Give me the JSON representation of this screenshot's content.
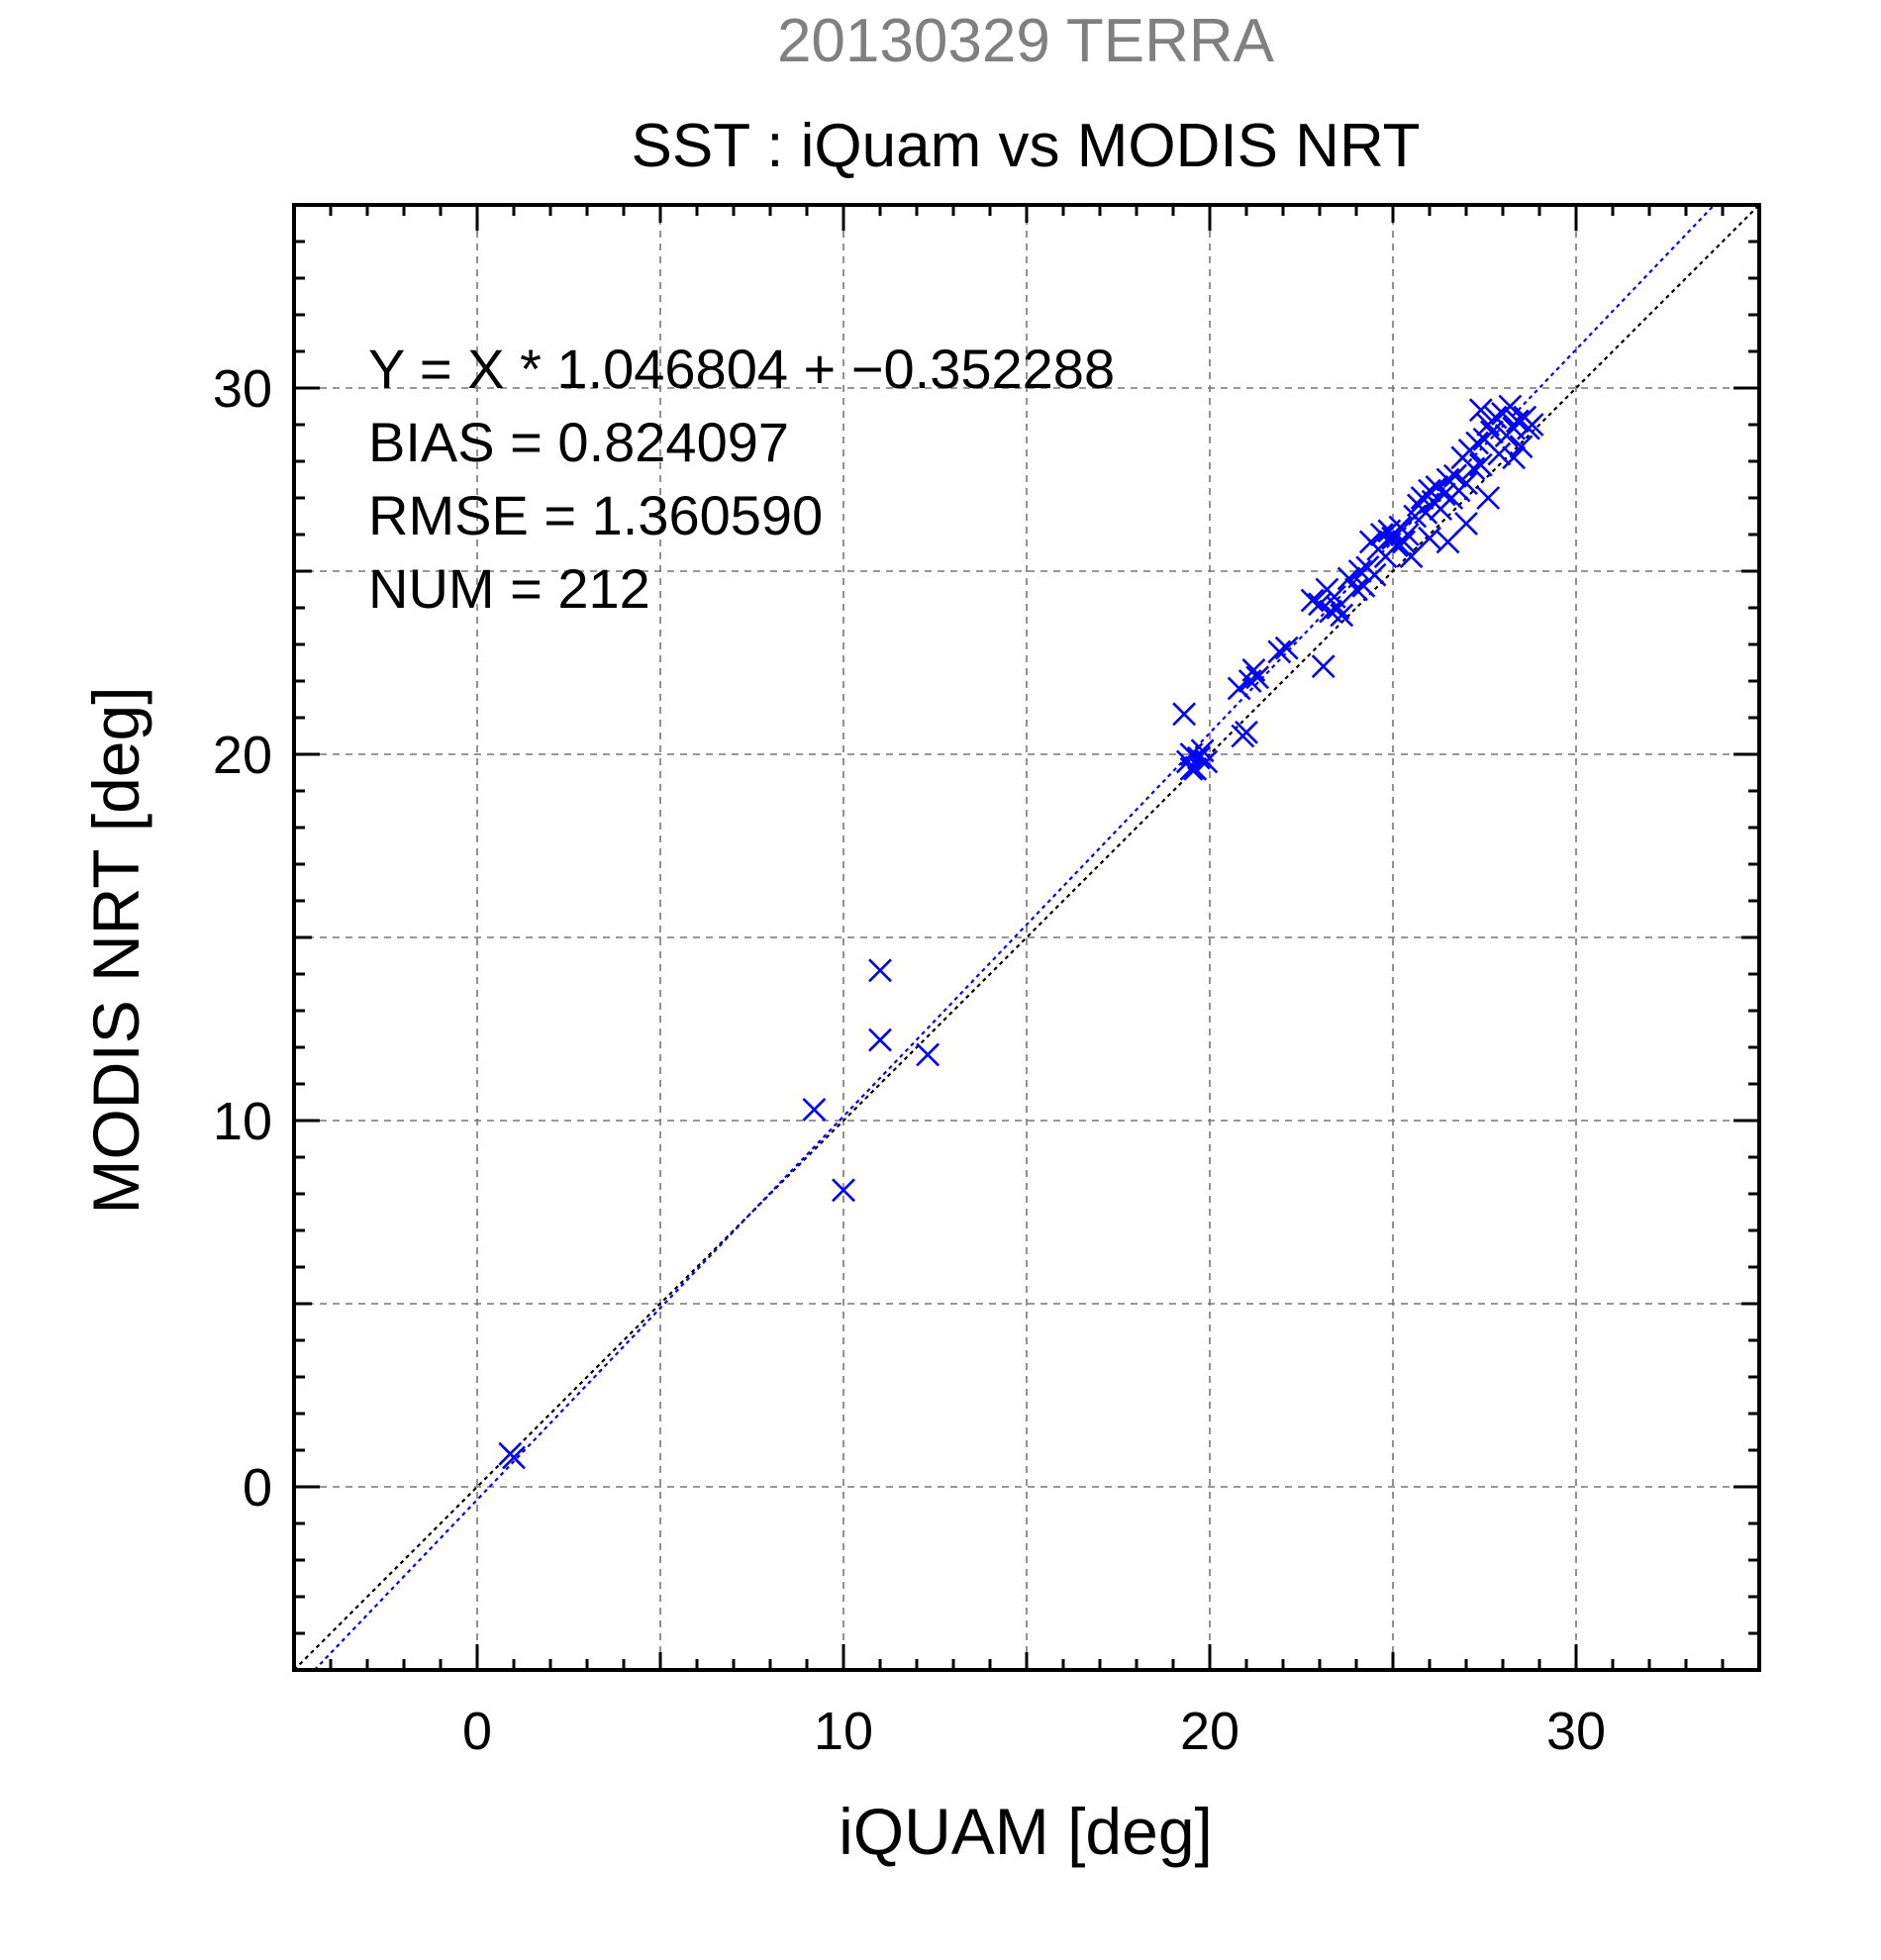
{
  "chart_data": {
    "type": "scatter",
    "supertitle": "20130329 TERRA",
    "title": "SST : iQuam vs MODIS NRT",
    "xlabel": "iQUAM [deg]",
    "ylabel": "MODIS NRT [deg]",
    "xlim": [
      -5,
      35
    ],
    "ylim": [
      -5,
      35
    ],
    "xticks": [
      0,
      10,
      20,
      30
    ],
    "yticks": [
      0,
      10,
      20,
      30
    ],
    "grid": true,
    "annotations": [
      "Y = X * 1.046804 + −0.352288",
      "BIAS = 0.824097",
      "RMSE = 1.360590",
      "NUM = 212"
    ],
    "fit_line": {
      "slope": 1.046804,
      "intercept": -0.352288,
      "color": "#0000ff"
    },
    "identity_line": {
      "slope": 1,
      "intercept": 0,
      "color": "#000000"
    },
    "marker_color": "#0000ff",
    "series": [
      {
        "points": [
          [
            0.9,
            0.9
          ],
          [
            1.0,
            0.8
          ],
          [
            9.2,
            10.3
          ],
          [
            10.0,
            8.1
          ],
          [
            11.0,
            14.1
          ],
          [
            11.0,
            12.2
          ],
          [
            12.3,
            11.8
          ],
          [
            19.3,
            21.1
          ],
          [
            19.4,
            19.8
          ],
          [
            19.5,
            20.0
          ],
          [
            19.6,
            19.6
          ],
          [
            19.7,
            19.9
          ],
          [
            19.8,
            20.1
          ],
          [
            19.5,
            19.6
          ],
          [
            19.9,
            19.8
          ],
          [
            20.8,
            21.8
          ],
          [
            20.9,
            20.5
          ],
          [
            21.0,
            20.6
          ],
          [
            21.1,
            22.0
          ],
          [
            21.3,
            22.1
          ],
          [
            21.2,
            22.3
          ],
          [
            21.9,
            22.8
          ],
          [
            22.1,
            22.9
          ],
          [
            22.8,
            24.2
          ],
          [
            23.0,
            24.1
          ],
          [
            23.1,
            22.4
          ],
          [
            23.2,
            24.5
          ],
          [
            23.3,
            23.9
          ],
          [
            23.4,
            24.3
          ],
          [
            23.5,
            24.0
          ],
          [
            23.6,
            23.8
          ],
          [
            23.8,
            24.8
          ],
          [
            24.0,
            24.5
          ],
          [
            24.1,
            25.0
          ],
          [
            24.2,
            24.6
          ],
          [
            24.3,
            25.1
          ],
          [
            24.4,
            25.8
          ],
          [
            24.5,
            24.9
          ],
          [
            24.6,
            25.6
          ],
          [
            24.7,
            26.0
          ],
          [
            24.8,
            25.4
          ],
          [
            24.9,
            26.1
          ],
          [
            25.0,
            25.9
          ],
          [
            25.1,
            25.7
          ],
          [
            25.2,
            26.2
          ],
          [
            25.3,
            25.8
          ],
          [
            25.4,
            26.0
          ],
          [
            25.5,
            25.4
          ],
          [
            25.6,
            26.5
          ],
          [
            25.7,
            26.8
          ],
          [
            25.8,
            27.0
          ],
          [
            25.9,
            26.6
          ],
          [
            26.0,
            27.2
          ],
          [
            26.0,
            25.9
          ],
          [
            26.1,
            26.9
          ],
          [
            26.2,
            27.3
          ],
          [
            26.3,
            26.7
          ],
          [
            26.4,
            27.1
          ],
          [
            26.5,
            27.5
          ],
          [
            26.5,
            25.8
          ],
          [
            26.6,
            27.0
          ],
          [
            26.7,
            27.6
          ],
          [
            26.8,
            27.2
          ],
          [
            26.9,
            28.1
          ],
          [
            27.0,
            27.4
          ],
          [
            27.0,
            26.3
          ],
          [
            27.1,
            28.3
          ],
          [
            27.2,
            27.8
          ],
          [
            27.3,
            28.5
          ],
          [
            27.4,
            27.9
          ],
          [
            27.4,
            29.4
          ],
          [
            27.5,
            28.6
          ],
          [
            27.6,
            27.0
          ],
          [
            27.6,
            29.0
          ],
          [
            27.7,
            28.8
          ],
          [
            27.8,
            29.2
          ],
          [
            27.9,
            28.2
          ],
          [
            28.0,
            29.3
          ],
          [
            28.1,
            28.7
          ],
          [
            28.2,
            29.5
          ],
          [
            28.3,
            28.9
          ],
          [
            28.4,
            29.1
          ],
          [
            28.5,
            28.4
          ],
          [
            28.6,
            29.2
          ],
          [
            28.7,
            28.9
          ],
          [
            28.8,
            29.0
          ],
          [
            28.3,
            28.1
          ]
        ]
      }
    ]
  }
}
